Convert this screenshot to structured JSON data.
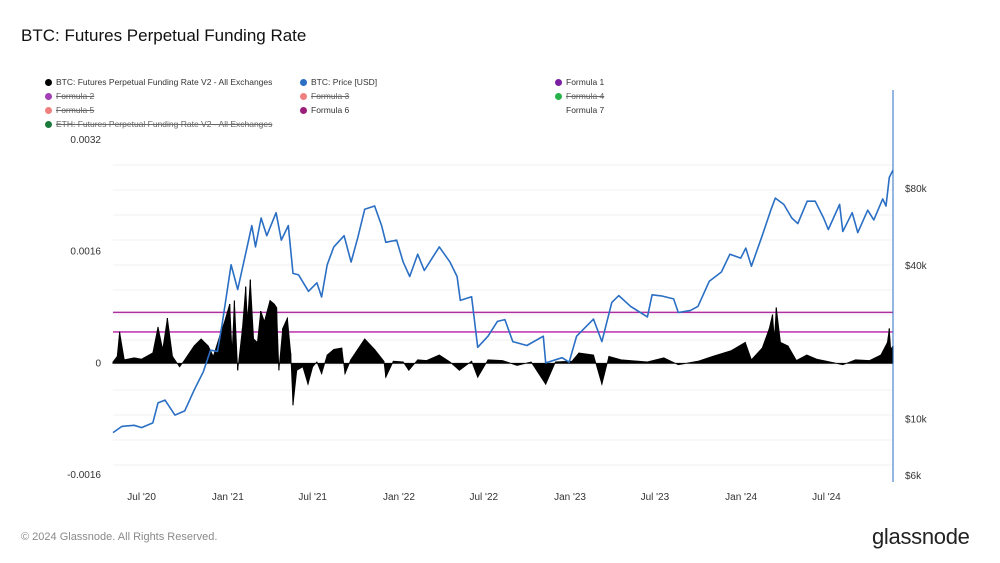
{
  "title": "BTC: Futures Perpetual Funding Rate",
  "legend": [
    {
      "label": "BTC: Futures Perpetual Funding Rate V2 - All Exchanges",
      "color": "#000000",
      "active": true
    },
    {
      "label": "BTC: Price [USD]",
      "color": "#2a6fc4",
      "active": true
    },
    {
      "label": "Formula 1",
      "color": "#7a1fa2",
      "active": true
    },
    {
      "label": "Formula 2",
      "color": "#a33fb5",
      "active": false
    },
    {
      "label": "Formula 3",
      "color": "#f08080",
      "active": false
    },
    {
      "label": "Formula 4",
      "color": "#27b24a",
      "active": false
    },
    {
      "label": "Formula 5",
      "color": "#f08080",
      "active": false
    },
    {
      "label": "Formula 6",
      "color": "#9b1f7a",
      "active": true
    },
    {
      "label": "Formula 7",
      "color": "",
      "active": true
    },
    {
      "label": "ETH: Futures Perpetual Funding Rate V2 - All Exchanges",
      "color": "#1a7a3c",
      "active": false
    }
  ],
  "footer": "© 2024 Glassnode. All Rights Reserved.",
  "logo": "glassnode",
  "chart_data": {
    "type": "line",
    "left_axis": {
      "ticks": [
        0.0032,
        0.0016,
        0,
        -0.0016
      ],
      "tick_labels": [
        "0.0032",
        "0.0016",
        "0",
        "-0.0016"
      ],
      "ylim": [
        -0.0016,
        0.0032
      ]
    },
    "right_axis": {
      "scale": "log",
      "ticks": [
        80000,
        40000,
        10000,
        6000
      ],
      "tick_labels": [
        "$80k",
        "$40k",
        "$10k",
        "$6k"
      ]
    },
    "x_axis": {
      "tick_labels": [
        "Jul '20",
        "Jan '21",
        "Jul '21",
        "Jan '22",
        "Jul '22",
        "Jan '23",
        "Jul '23",
        "Jan '24",
        "Jul '24"
      ],
      "tick_dates": [
        "2020-07-01",
        "2021-01-01",
        "2021-07-01",
        "2022-01-01",
        "2022-07-01",
        "2023-01-01",
        "2023-07-01",
        "2024-01-01",
        "2024-07-01"
      ],
      "range": [
        "2020-05-01",
        "2024-11-20"
      ]
    },
    "reference_lines": [
      {
        "name": "Formula 1",
        "value": 0.00073,
        "color": "#b02fa0"
      },
      {
        "name": "Formula 6",
        "value": 0.00045,
        "color": "#c23fb4"
      }
    ],
    "price_series": {
      "name": "BTC: Price [USD]",
      "color": "#2a6fc4",
      "points": [
        [
          "2020-05-01",
          8800
        ],
        [
          "2020-05-20",
          9300
        ],
        [
          "2020-06-15",
          9400
        ],
        [
          "2020-07-01",
          9200
        ],
        [
          "2020-07-25",
          9600
        ],
        [
          "2020-08-05",
          11500
        ],
        [
          "2020-08-20",
          11800
        ],
        [
          "2020-09-10",
          10300
        ],
        [
          "2020-10-01",
          10700
        ],
        [
          "2020-10-21",
          12900
        ],
        [
          "2020-11-10",
          15300
        ],
        [
          "2020-11-25",
          18500
        ],
        [
          "2020-12-10",
          18300
        ],
        [
          "2020-12-20",
          23500
        ],
        [
          "2021-01-08",
          40000
        ],
        [
          "2021-01-22",
          32000
        ],
        [
          "2021-02-10",
          46000
        ],
        [
          "2021-02-21",
          57000
        ],
        [
          "2021-03-01",
          47000
        ],
        [
          "2021-03-13",
          61000
        ],
        [
          "2021-03-25",
          52000
        ],
        [
          "2021-04-14",
          64000
        ],
        [
          "2021-04-25",
          50000
        ],
        [
          "2021-05-10",
          57000
        ],
        [
          "2021-05-20",
          37000
        ],
        [
          "2021-06-01",
          36500
        ],
        [
          "2021-06-22",
          31500
        ],
        [
          "2021-07-10",
          34000
        ],
        [
          "2021-07-20",
          29900
        ],
        [
          "2021-08-01",
          40000
        ],
        [
          "2021-08-15",
          47000
        ],
        [
          "2021-09-06",
          52000
        ],
        [
          "2021-09-21",
          41000
        ],
        [
          "2021-10-05",
          51000
        ],
        [
          "2021-10-20",
          66000
        ],
        [
          "2021-11-10",
          68000
        ],
        [
          "2021-11-25",
          57000
        ],
        [
          "2021-12-04",
          49000
        ],
        [
          "2021-12-27",
          50000
        ],
        [
          "2022-01-10",
          41000
        ],
        [
          "2022-01-24",
          36000
        ],
        [
          "2022-02-10",
          44000
        ],
        [
          "2022-02-24",
          38000
        ],
        [
          "2022-03-28",
          47000
        ],
        [
          "2022-04-20",
          41000
        ],
        [
          "2022-05-05",
          36000
        ],
        [
          "2022-05-12",
          29000
        ],
        [
          "2022-06-05",
          30000
        ],
        [
          "2022-06-18",
          19000
        ],
        [
          "2022-07-10",
          21000
        ],
        [
          "2022-07-30",
          24000
        ],
        [
          "2022-08-15",
          24400
        ],
        [
          "2022-09-01",
          20000
        ],
        [
          "2022-10-01",
          19300
        ],
        [
          "2022-11-05",
          21000
        ],
        [
          "2022-11-10",
          16500
        ],
        [
          "2022-12-15",
          17300
        ],
        [
          "2022-12-30",
          16600
        ],
        [
          "2023-01-15",
          21000
        ],
        [
          "2023-02-20",
          24500
        ],
        [
          "2023-03-10",
          20000
        ],
        [
          "2023-03-31",
          28500
        ],
        [
          "2023-04-15",
          30300
        ],
        [
          "2023-05-10",
          27500
        ],
        [
          "2023-06-15",
          25000
        ],
        [
          "2023-06-25",
          30500
        ],
        [
          "2023-07-15",
          30200
        ],
        [
          "2023-08-10",
          29400
        ],
        [
          "2023-08-20",
          26000
        ],
        [
          "2023-09-15",
          26500
        ],
        [
          "2023-10-01",
          27500
        ],
        [
          "2023-10-25",
          34500
        ],
        [
          "2023-11-20",
          37500
        ],
        [
          "2023-12-08",
          44000
        ],
        [
          "2023-12-31",
          42500
        ],
        [
          "2024-01-11",
          46500
        ],
        [
          "2024-01-23",
          39500
        ],
        [
          "2024-02-15",
          52000
        ],
        [
          "2024-03-05",
          66000
        ],
        [
          "2024-03-14",
          73000
        ],
        [
          "2024-04-01",
          69000
        ],
        [
          "2024-04-18",
          61000
        ],
        [
          "2024-05-01",
          58000
        ],
        [
          "2024-05-21",
          71000
        ],
        [
          "2024-06-07",
          71000
        ],
        [
          "2024-06-25",
          61000
        ],
        [
          "2024-07-05",
          55000
        ],
        [
          "2024-07-29",
          69000
        ],
        [
          "2024-08-05",
          54000
        ],
        [
          "2024-08-25",
          64000
        ],
        [
          "2024-09-06",
          53500
        ],
        [
          "2024-09-27",
          65500
        ],
        [
          "2024-10-10",
          60000
        ],
        [
          "2024-10-29",
          72500
        ],
        [
          "2024-11-05",
          68000
        ],
        [
          "2024-11-12",
          88000
        ],
        [
          "2024-11-20",
          94000
        ]
      ]
    },
    "funding_series": {
      "name": "BTC: Futures Perpetual Funding Rate V2 - All Exchanges",
      "color": "#000000",
      "points": [
        [
          "2020-05-01",
          2e-05
        ],
        [
          "2020-05-10",
          0.0001
        ],
        [
          "2020-05-15",
          0.00045
        ],
        [
          "2020-05-25",
          5e-05
        ],
        [
          "2020-06-15",
          8e-05
        ],
        [
          "2020-07-01",
          6e-05
        ],
        [
          "2020-07-25",
          0.00015
        ],
        [
          "2020-08-05",
          0.00052
        ],
        [
          "2020-08-15",
          0.0002
        ],
        [
          "2020-08-25",
          0.00065
        ],
        [
          "2020-09-05",
          0.0001
        ],
        [
          "2020-09-20",
          -5e-05
        ],
        [
          "2020-10-01",
          5e-05
        ],
        [
          "2020-10-21",
          0.00025
        ],
        [
          "2020-11-05",
          0.00035
        ],
        [
          "2020-11-20",
          0.00025
        ],
        [
          "2020-12-01",
          0.0001
        ],
        [
          "2020-12-15",
          0.0004
        ],
        [
          "2020-12-25",
          0.0006
        ],
        [
          "2021-01-05",
          0.00085
        ],
        [
          "2021-01-10",
          0.00015
        ],
        [
          "2021-01-15",
          0.0009
        ],
        [
          "2021-01-22",
          -0.0001
        ],
        [
          "2021-02-01",
          0.0005
        ],
        [
          "2021-02-08",
          0.0011
        ],
        [
          "2021-02-12",
          0.0006
        ],
        [
          "2021-02-18",
          0.0012
        ],
        [
          "2021-02-25",
          0.00035
        ],
        [
          "2021-03-05",
          0.0003
        ],
        [
          "2021-03-12",
          0.00075
        ],
        [
          "2021-03-20",
          0.0006
        ],
        [
          "2021-04-01",
          0.0009
        ],
        [
          "2021-04-10",
          0.00085
        ],
        [
          "2021-04-15",
          0.0008
        ],
        [
          "2021-04-20",
          -0.0001
        ],
        [
          "2021-04-28",
          0.0005
        ],
        [
          "2021-05-08",
          0.00065
        ],
        [
          "2021-05-15",
          0.00015
        ],
        [
          "2021-05-20",
          -0.0006
        ],
        [
          "2021-05-28",
          -0.0001
        ],
        [
          "2021-06-10",
          -5e-05
        ],
        [
          "2021-06-21",
          -0.0003
        ],
        [
          "2021-07-01",
          -5e-05
        ],
        [
          "2021-07-10",
          2e-05
        ],
        [
          "2021-07-20",
          -0.00015
        ],
        [
          "2021-08-01",
          0.00012
        ],
        [
          "2021-08-15",
          0.0002
        ],
        [
          "2021-09-01",
          0.00022
        ],
        [
          "2021-09-08",
          -0.00015
        ],
        [
          "2021-09-20",
          5e-05
        ],
        [
          "2021-10-05",
          0.0002
        ],
        [
          "2021-10-20",
          0.00035
        ],
        [
          "2021-11-10",
          0.0002
        ],
        [
          "2021-11-30",
          3e-05
        ],
        [
          "2021-12-04",
          -0.0002
        ],
        [
          "2021-12-20",
          3e-05
        ],
        [
          "2022-01-10",
          2e-05
        ],
        [
          "2022-01-22",
          -0.0001
        ],
        [
          "2022-02-10",
          5e-05
        ],
        [
          "2022-03-01",
          4e-05
        ],
        [
          "2022-03-28",
          0.00012
        ],
        [
          "2022-04-20",
          2e-05
        ],
        [
          "2022-05-10",
          -0.0001
        ],
        [
          "2022-06-05",
          3e-05
        ],
        [
          "2022-06-18",
          -0.0002
        ],
        [
          "2022-07-10",
          5e-05
        ],
        [
          "2022-08-10",
          4e-05
        ],
        [
          "2022-09-10",
          -3e-05
        ],
        [
          "2022-10-10",
          2e-05
        ],
        [
          "2022-11-10",
          -0.0003
        ],
        [
          "2022-12-01",
          2e-05
        ],
        [
          "2023-01-05",
          3e-05
        ],
        [
          "2023-01-20",
          0.00015
        ],
        [
          "2023-02-20",
          0.00012
        ],
        [
          "2023-03-10",
          -0.0003
        ],
        [
          "2023-03-25",
          0.0001
        ],
        [
          "2023-04-20",
          5e-05
        ],
        [
          "2023-06-15",
          2e-05
        ],
        [
          "2023-07-20",
          8e-05
        ],
        [
          "2023-08-20",
          -2e-05
        ],
        [
          "2023-10-01",
          3e-05
        ],
        [
          "2023-11-01",
          0.0001
        ],
        [
          "2023-12-10",
          0.00018
        ],
        [
          "2023-12-28",
          0.00025
        ],
        [
          "2024-01-10",
          0.0003
        ],
        [
          "2024-01-23",
          5e-05
        ],
        [
          "2024-02-15",
          0.00022
        ],
        [
          "2024-03-01",
          0.0005
        ],
        [
          "2024-03-08",
          0.0007
        ],
        [
          "2024-03-12",
          0.00035
        ],
        [
          "2024-03-16",
          0.0008
        ],
        [
          "2024-03-25",
          0.0003
        ],
        [
          "2024-04-10",
          0.00025
        ],
        [
          "2024-04-28",
          4e-05
        ],
        [
          "2024-05-20",
          0.00012
        ],
        [
          "2024-06-10",
          6e-05
        ],
        [
          "2024-07-01",
          3e-05
        ],
        [
          "2024-08-05",
          -2e-05
        ],
        [
          "2024-09-01",
          5e-05
        ],
        [
          "2024-10-01",
          4e-05
        ],
        [
          "2024-10-25",
          0.00012
        ],
        [
          "2024-11-08",
          0.0003
        ],
        [
          "2024-11-12",
          0.0005
        ],
        [
          "2024-11-15",
          0.0002
        ],
        [
          "2024-11-20",
          0.00025
        ]
      ]
    }
  }
}
